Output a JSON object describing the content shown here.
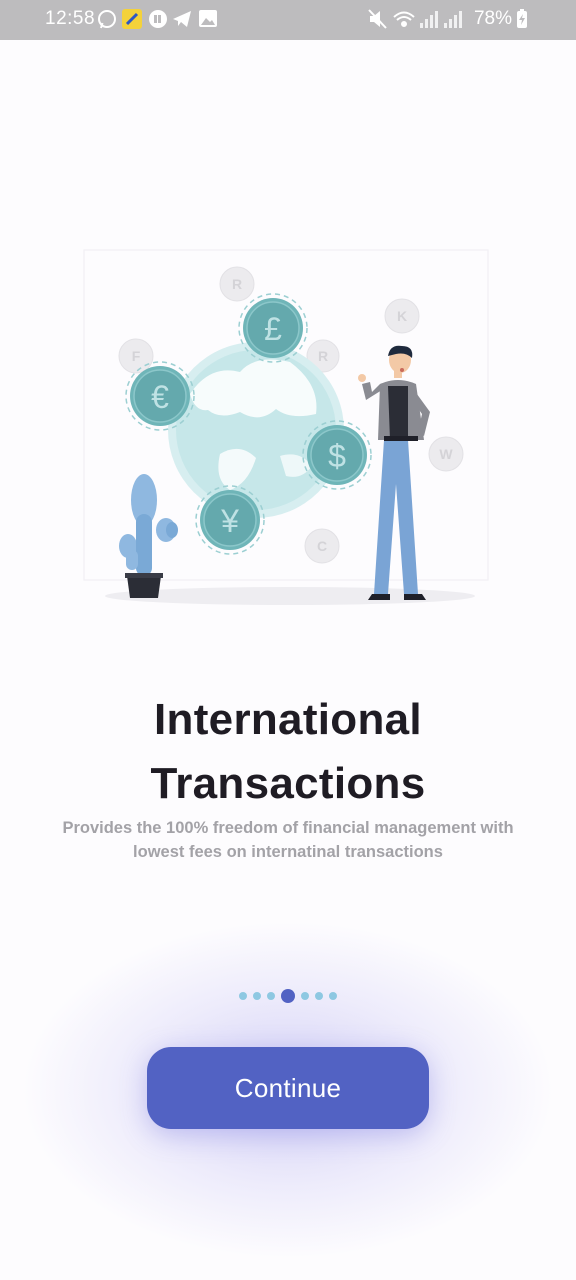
{
  "status_bar": {
    "time": "12:58",
    "battery": "78%",
    "icons": [
      "whatsapp-icon",
      "app-icon",
      "messenger-icon",
      "telegram-icon",
      "gallery-icon",
      "mute-icon",
      "wifi-icon",
      "signal-icon",
      "signal-icon",
      "battery-charging-icon"
    ]
  },
  "illustration": {
    "currency_symbols": {
      "pound": "£",
      "euro": "€",
      "dollar": "$",
      "yen": "¥",
      "faint": [
        "R",
        "F",
        "R",
        "K",
        "W",
        "C"
      ]
    }
  },
  "onboarding": {
    "title_line1": "International",
    "title_line2": "Transactions",
    "subtitle_line1": "Provides the 100% freedom of financial management with",
    "subtitle_line2": "lowest fees on internatinal transactions"
  },
  "pager": {
    "total": 7,
    "active_index": 3
  },
  "actions": {
    "continue_label": "Continue"
  },
  "colors": {
    "accent": "#5262c3",
    "coin_teal": "#6fb5b8",
    "globe": "#c6e7e9",
    "dot_inactive": "#8ec8e2"
  }
}
